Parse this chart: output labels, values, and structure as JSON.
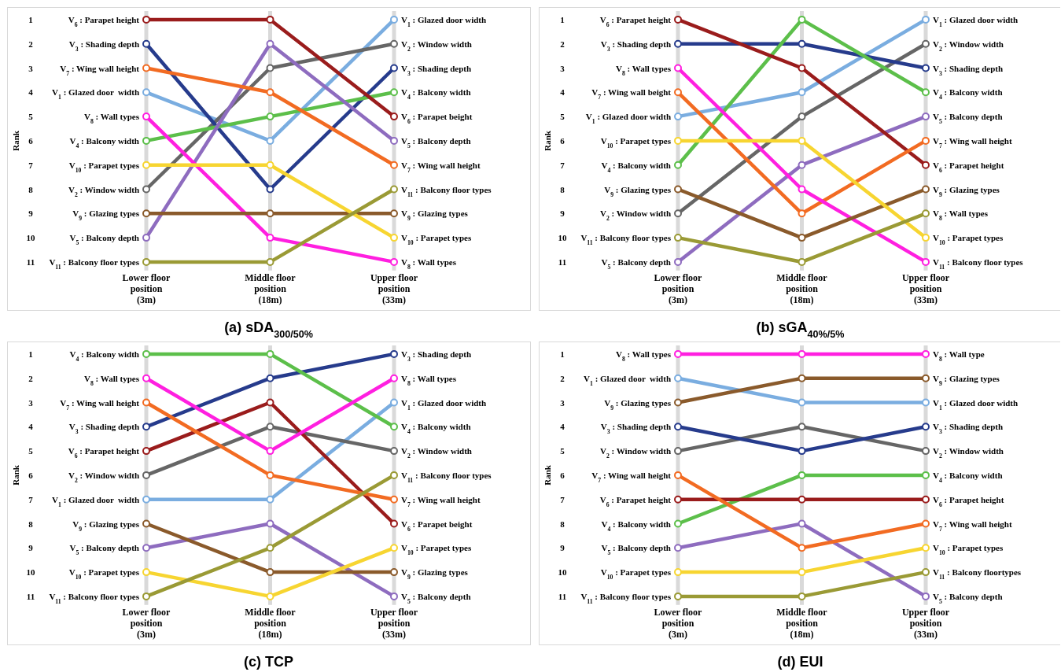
{
  "chart_data": [
    {
      "type": "line",
      "title": "(a) sDA$_{300/50%}$",
      "ylabel": "Rank",
      "categories": [
        "Lower floor position (3m)",
        "Middle floor position (18m)",
        "Upper floor position (33m)"
      ],
      "ylim": [
        13,
        0.5
      ],
      "yticks": [
        1,
        2,
        3,
        4,
        5,
        6,
        7,
        8,
        9,
        10,
        11
      ],
      "grid": "x",
      "marker": "circle",
      "series": [
        {
          "color": "#7aade0",
          "values": [
            4,
            6,
            1
          ]
        },
        {
          "color": "#666666",
          "values": [
            8,
            3,
            2
          ]
        },
        {
          "color": "#263b8c",
          "values": [
            2,
            8,
            3
          ]
        },
        {
          "color": "#5cbf4a",
          "values": [
            6,
            5,
            4
          ]
        },
        {
          "color": "#8e6cbf",
          "values": [
            10,
            2,
            6
          ]
        },
        {
          "color": "#9a1c1c",
          "values": [
            1,
            1,
            5
          ]
        },
        {
          "color": "#f26b22",
          "values": [
            3,
            4,
            7
          ]
        },
        {
          "color": "#ff1fe0",
          "values": [
            5,
            10,
            11
          ]
        },
        {
          "color": "#8a5a2b",
          "values": [
            9,
            9,
            9
          ]
        },
        {
          "color": "#f7d531",
          "values": [
            7,
            7,
            10
          ]
        },
        {
          "color": "#9a9a35",
          "values": [
            11,
            11,
            8
          ]
        }
      ],
      "annotations": [
        {
          "text": "V$_{6}$ : Parapet height",
          "x": "Lower floor position (3m)",
          "y": 1
        },
        {
          "text": "V$_{3}$ : Shading depth",
          "x": "Lower floor position (3m)",
          "y": 2
        },
        {
          "text": "V$_{7}$ : Wing wall height",
          "x": "Lower floor position (3m)",
          "y": 3
        },
        {
          "text": "V$_{1}$ : Glazed door  width",
          "x": "Lower floor position (3m)",
          "y": 4
        },
        {
          "text": "V$_{8}$ : Wall types",
          "x": "Lower floor position (3m)",
          "y": 5
        },
        {
          "text": "V$_{4}$ : Balcony width",
          "x": "Lower floor position (3m)",
          "y": 6
        },
        {
          "text": "V$_{10}$ : Parapet types",
          "x": "Lower floor position (3m)",
          "y": 7
        },
        {
          "text": "V$_{2}$ : Window width",
          "x": "Lower floor position (3m)",
          "y": 8
        },
        {
          "text": "V$_{9}$ : Glazing types",
          "x": "Lower floor position (3m)",
          "y": 9
        },
        {
          "text": "V$_{5}$ : Balcony depth",
          "x": "Lower floor position (3m)",
          "y": 10
        },
        {
          "text": "V$_{11}$ : Balcony floor types",
          "x": "Lower floor position (3m)",
          "y": 11
        },
        {
          "text": "V$_{1}$ : Glazed door width",
          "x": "Upper floor position (33m)",
          "y": 1
        },
        {
          "text": "V$_{2}$ : Window width",
          "x": "Upper floor position (33m)",
          "y": 2
        },
        {
          "text": "V$_{3}$ : Shading depth",
          "x": "Upper floor position (33m)",
          "y": 3
        },
        {
          "text": "V$_{4}$ : Balcony width",
          "x": "Upper floor position (33m)",
          "y": 4
        },
        {
          "text": "V$_{6}$ : Parapet beight",
          "x": "Upper floor position (33m)",
          "y": 5
        },
        {
          "text": "V$_{5}$ : Balcony depth",
          "x": "Upper floor position (33m)",
          "y": 6
        },
        {
          "text": "V$_{7}$ : Wing wall height",
          "x": "Upper floor position (33m)",
          "y": 7
        },
        {
          "text": "V$_{11}$ : Balcony floor types",
          "x": "Upper floor position (33m)",
          "y": 8
        },
        {
          "text": "V$_{9}$ : Glazing types",
          "x": "Upper floor position (33m)",
          "y": 9
        },
        {
          "text": "V$_{10}$ : Parapet types",
          "x": "Upper floor position (33m)",
          "y": 10
        },
        {
          "text": "V$_{8}$ : Wall types",
          "x": "Upper floor position (33m)",
          "y": 11
        }
      ]
    },
    {
      "type": "line",
      "title": "(b) sGA$_{40%/5%}$",
      "ylabel": "Rank",
      "categories": [
        "Lower floor position (3m)",
        "Middle floor position (18m)",
        "Upper floor position (33m)"
      ],
      "ylim": [
        13,
        0.5
      ],
      "yticks": [
        1,
        2,
        3,
        4,
        5,
        6,
        7,
        8,
        9,
        10,
        11
      ],
      "grid": "x",
      "marker": "circle",
      "series": [
        {
          "color": "#7aade0",
          "values": [
            5,
            4,
            1
          ]
        },
        {
          "color": "#666666",
          "values": [
            9,
            5,
            2
          ]
        },
        {
          "color": "#263b8c",
          "values": [
            2,
            2,
            3
          ]
        },
        {
          "color": "#5cbf4a",
          "values": [
            7,
            1,
            4
          ]
        },
        {
          "color": "#8e6cbf",
          "values": [
            11,
            7,
            5
          ]
        },
        {
          "color": "#9a1c1c",
          "values": [
            1,
            3,
            7
          ]
        },
        {
          "color": "#f26b22",
          "values": [
            4,
            9,
            6
          ]
        },
        {
          "color": "#ff1fe0",
          "values": [
            3,
            8,
            11
          ]
        },
        {
          "color": "#8a5a2b",
          "values": [
            8,
            10,
            8
          ]
        },
        {
          "color": "#f7d531",
          "values": [
            6,
            6,
            10
          ]
        },
        {
          "color": "#9a9a35",
          "values": [
            10,
            11,
            9
          ]
        }
      ],
      "annotations": [
        {
          "text": "V$_{6}$ : Parapet height",
          "x": "Lower floor position (3m)",
          "y": 1
        },
        {
          "text": "V$_{3}$ : Shading depth",
          "x": "Lower floor position (3m)",
          "y": 2
        },
        {
          "text": "V$_{8}$ : Wall types",
          "x": "Lower floor position (3m)",
          "y": 3
        },
        {
          "text": "V$_{7}$ : Wing wall beight",
          "x": "Lower floor position (3m)",
          "y": 4
        },
        {
          "text": "V$_{1}$ : Glazed door width",
          "x": "Lower floor position (3m)",
          "y": 5
        },
        {
          "text": "V$_{10}$ : Parapet types",
          "x": "Lower floor position (3m)",
          "y": 6
        },
        {
          "text": "V$_{4}$ : Balcony width",
          "x": "Lower floor position (3m)",
          "y": 7
        },
        {
          "text": "V$_{9}$ : Glazing types",
          "x": "Lower floor position (3m)",
          "y": 8
        },
        {
          "text": "V$_{2}$ : Window width",
          "x": "Lower floor position (3m)",
          "y": 9
        },
        {
          "text": "V$_{11}$ : Balcony floor types",
          "x": "Lower floor position (3m)",
          "y": 10
        },
        {
          "text": "V$_{5}$ : Balcony depth",
          "x": "Lower floor position (3m)",
          "y": 11
        },
        {
          "text": "V$_{1}$ : Glazed door width",
          "x": "Upper floor position (33m)",
          "y": 1
        },
        {
          "text": "V$_{2}$ : Window width",
          "x": "Upper floor position (33m)",
          "y": 2
        },
        {
          "text": "V$_{3}$ : Shading depth",
          "x": "Upper floor position (33m)",
          "y": 3
        },
        {
          "text": "V$_{4}$ : Balcony width",
          "x": "Upper floor position (33m)",
          "y": 4
        },
        {
          "text": "V$_{5}$ : Balcony depth",
          "x": "Upper floor position (33m)",
          "y": 5
        },
        {
          "text": "V$_{7}$ : Wing wall height",
          "x": "Upper floor position (33m)",
          "y": 6
        },
        {
          "text": "V$_{6}$ : Parapet height",
          "x": "Upper floor position (33m)",
          "y": 7
        },
        {
          "text": "V$_{9}$ : Glazing types",
          "x": "Upper floor position (33m)",
          "y": 8
        },
        {
          "text": "V$_{8}$ : Wall types",
          "x": "Upper floor position (33m)",
          "y": 9
        },
        {
          "text": "V$_{10}$ : Parapet types",
          "x": "Upper floor position (33m)",
          "y": 10
        },
        {
          "text": "V$_{11}$ : Balcony floor types",
          "x": "Upper floor position (33m)",
          "y": 11
        }
      ]
    },
    {
      "type": "line",
      "title": "(c) TCP",
      "ylabel": "Rank",
      "categories": [
        "Lower floor position (3m)",
        "Middle floor position (18m)",
        "Upper floor position (33m)"
      ],
      "ylim": [
        13,
        0.5
      ],
      "yticks": [
        1,
        2,
        3,
        4,
        5,
        6,
        7,
        8,
        9,
        10,
        11
      ],
      "grid": "x",
      "marker": "circle",
      "series": [
        {
          "color": "#7aade0",
          "values": [
            7,
            7,
            3
          ]
        },
        {
          "color": "#666666",
          "values": [
            6,
            4,
            5
          ]
        },
        {
          "color": "#263b8c",
          "values": [
            4,
            2,
            1
          ]
        },
        {
          "color": "#5cbf4a",
          "values": [
            1,
            1,
            4
          ]
        },
        {
          "color": "#8e6cbf",
          "values": [
            9,
            8,
            11
          ]
        },
        {
          "color": "#9a1c1c",
          "values": [
            5,
            3,
            8
          ]
        },
        {
          "color": "#f26b22",
          "values": [
            3,
            6,
            7
          ]
        },
        {
          "color": "#ff1fe0",
          "values": [
            2,
            5,
            2
          ]
        },
        {
          "color": "#8a5a2b",
          "values": [
            8,
            10,
            10
          ]
        },
        {
          "color": "#f7d531",
          "values": [
            10,
            11,
            9
          ]
        },
        {
          "color": "#9a9a35",
          "values": [
            11,
            9,
            6
          ]
        }
      ],
      "annotations": [
        {
          "text": "V$_{4}$ : Balcony width",
          "x": "Lower floor position (3m)",
          "y": 1
        },
        {
          "text": "V$_{8}$ : Wall types",
          "x": "Lower floor position (3m)",
          "y": 2
        },
        {
          "text": "V$_{7}$ : Wing wall height",
          "x": "Lower floor position (3m)",
          "y": 3
        },
        {
          "text": "V$_{3}$ : Shading depth",
          "x": "Lower floor position (3m)",
          "y": 4
        },
        {
          "text": "V$_{6}$ : Parapet height",
          "x": "Lower floor position (3m)",
          "y": 5
        },
        {
          "text": "V$_{2}$ : Window width",
          "x": "Lower floor position (3m)",
          "y": 6
        },
        {
          "text": "V$_{1}$ : Glazed door  width",
          "x": "Lower floor position (3m)",
          "y": 7
        },
        {
          "text": "V$_{9}$ : Glazing types",
          "x": "Lower floor position (3m)",
          "y": 8
        },
        {
          "text": "V$_{5}$ : Balcony depth",
          "x": "Lower floor position (3m)",
          "y": 9
        },
        {
          "text": "V$_{10}$ : Parapet types",
          "x": "Lower floor position (3m)",
          "y": 10
        },
        {
          "text": "V$_{11}$ : Balcony floor types",
          "x": "Lower floor position (3m)",
          "y": 11
        },
        {
          "text": "V$_{3}$ : Shading depth",
          "x": "Upper floor position (33m)",
          "y": 1
        },
        {
          "text": "V$_{8}$ : Wall types",
          "x": "Upper floor position (33m)",
          "y": 2
        },
        {
          "text": "V$_{1}$ : Glazed door width",
          "x": "Upper floor position (33m)",
          "y": 3
        },
        {
          "text": "V$_{4}$ : Balcony width",
          "x": "Upper floor position (33m)",
          "y": 4
        },
        {
          "text": "V$_{2}$ : Window width",
          "x": "Upper floor position (33m)",
          "y": 5
        },
        {
          "text": "V$_{11}$ : Balcony floor types",
          "x": "Upper floor position (33m)",
          "y": 6
        },
        {
          "text": "V$_{7}$ : Wing wall height",
          "x": "Upper floor position (33m)",
          "y": 7
        },
        {
          "text": "V$_{6}$ : Parapet beight",
          "x": "Upper floor position (33m)",
          "y": 8
        },
        {
          "text": "V$_{10}$ : Parapet types",
          "x": "Upper floor position (33m)",
          "y": 9
        },
        {
          "text": "V$_{9}$ : Glazing types",
          "x": "Upper floor position (33m)",
          "y": 10
        },
        {
          "text": "V$_{5}$ : Balcony depth",
          "x": "Upper floor position (33m)",
          "y": 11
        }
      ]
    },
    {
      "type": "line",
      "title": "(d) EUI",
      "ylabel": "Rank",
      "categories": [
        "Lower floor position (3m)",
        "Middle floor position (18m)",
        "Upper floor position (33m)"
      ],
      "ylim": [
        13,
        0.5
      ],
      "yticks": [
        1,
        2,
        3,
        4,
        5,
        6,
        7,
        8,
        9,
        10,
        11
      ],
      "grid": "x",
      "marker": "circle",
      "series": [
        {
          "color": "#7aade0",
          "values": [
            2,
            3,
            3
          ]
        },
        {
          "color": "#666666",
          "values": [
            5,
            4,
            5
          ]
        },
        {
          "color": "#263b8c",
          "values": [
            4,
            5,
            4
          ]
        },
        {
          "color": "#5cbf4a",
          "values": [
            8,
            6,
            6
          ]
        },
        {
          "color": "#8e6cbf",
          "values": [
            9,
            8,
            11
          ]
        },
        {
          "color": "#9a1c1c",
          "values": [
            7,
            7,
            7
          ]
        },
        {
          "color": "#f26b22",
          "values": [
            6,
            9,
            8
          ]
        },
        {
          "color": "#ff1fe0",
          "values": [
            1,
            1,
            1
          ]
        },
        {
          "color": "#8a5a2b",
          "values": [
            3,
            2,
            2
          ]
        },
        {
          "color": "#f7d531",
          "values": [
            10,
            10,
            9
          ]
        },
        {
          "color": "#9a9a35",
          "values": [
            11,
            11,
            10
          ]
        }
      ],
      "annotations": [
        {
          "text": "V$_{8}$ : Wall types",
          "x": "Lower floor position (3m)",
          "y": 1
        },
        {
          "text": "V$_{1}$ : Glazed door  width",
          "x": "Lower floor position (3m)",
          "y": 2
        },
        {
          "text": "V$_{9}$ : Glazing types",
          "x": "Lower floor position (3m)",
          "y": 3
        },
        {
          "text": "V$_{3}$ : Shading depth",
          "x": "Lower floor position (3m)",
          "y": 4
        },
        {
          "text": "V$_{2}$ : Window width",
          "x": "Lower floor position (3m)",
          "y": 5
        },
        {
          "text": "V$_{7}$ : Wing wall height",
          "x": "Lower floor position (3m)",
          "y": 6
        },
        {
          "text": "V$_{6}$ : Parapet height",
          "x": "Lower floor position (3m)",
          "y": 7
        },
        {
          "text": "V$_{4}$ : Balcony width",
          "x": "Lower floor position (3m)",
          "y": 8
        },
        {
          "text": "V$_{5}$ : Balcony depth",
          "x": "Lower floor position (3m)",
          "y": 9
        },
        {
          "text": "V$_{10}$ : Parapet types",
          "x": "Lower floor position (3m)",
          "y": 10
        },
        {
          "text": "V$_{11}$ : Balcony floor types",
          "x": "Lower floor position (3m)",
          "y": 11
        },
        {
          "text": "V$_{8}$ : Wall type",
          "x": "Upper floor position (33m)",
          "y": 1
        },
        {
          "text": "V$_{9}$ : Glazing types",
          "x": "Upper floor position (33m)",
          "y": 2
        },
        {
          "text": "V$_{1}$ : Glazed door width",
          "x": "Upper floor position (33m)",
          "y": 3
        },
        {
          "text": "V$_{3}$ : Shading depth",
          "x": "Upper floor position (33m)",
          "y": 4
        },
        {
          "text": "V$_{2}$ : Window width",
          "x": "Upper floor position (33m)",
          "y": 5
        },
        {
          "text": "V$_{4}$ : Balcony width",
          "x": "Upper floor position (33m)",
          "y": 6
        },
        {
          "text": "V$_{6}$ : Parapet height",
          "x": "Upper floor position (33m)",
          "y": 7
        },
        {
          "text": "V$_{7}$ : Wing wall height",
          "x": "Upper floor position (33m)",
          "y": 8
        },
        {
          "text": "V$_{10}$ : Parapet types",
          "x": "Upper floor position (33m)",
          "y": 9
        },
        {
          "text": "V$_{11}$ : Balcony floortypes",
          "x": "Upper floor position (33m)",
          "y": 10
        },
        {
          "text": "V$_{5}$ : Balcony depth",
          "x": "Upper floor position (33m)",
          "y": 11
        }
      ]
    }
  ]
}
